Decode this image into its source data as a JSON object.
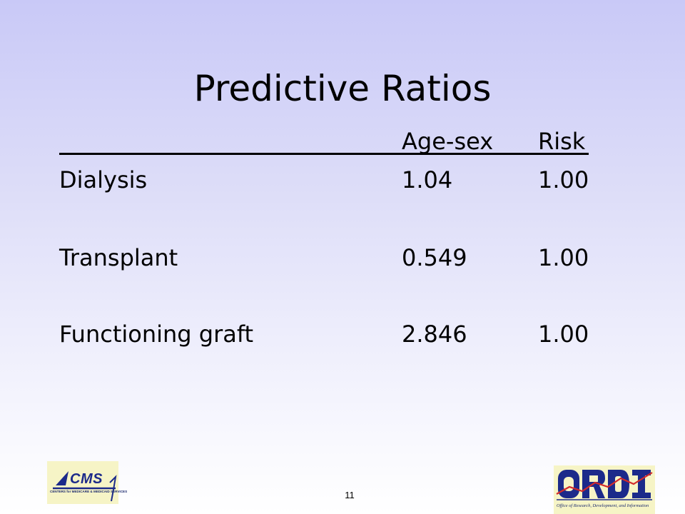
{
  "slide": {
    "title": "Predictive Ratios",
    "page_number": "11"
  },
  "table": {
    "columns": [
      "",
      "Age-sex",
      "Risk"
    ],
    "rows": [
      {
        "label": "Dialysis",
        "age_sex": "1.04",
        "risk": "1.00"
      },
      {
        "label": "Transplant",
        "age_sex": "0.549",
        "risk": "1.00"
      },
      {
        "label": "Functioning graft",
        "age_sex": "2.846",
        "risk": "1.00"
      }
    ]
  },
  "footer": {
    "cms_logo": {
      "wordmark": "CMS",
      "caption": "CENTERS for MEDICARE & MEDICAID SERVICES"
    },
    "ordi_logo": {
      "caption": "Office of Research, Development, and Information"
    }
  },
  "colors": {
    "background_top": "#c9c9f7",
    "background_bottom": "#ffffff",
    "logo_navy": "#1c2a8a",
    "logo_red": "#d22b2b"
  }
}
